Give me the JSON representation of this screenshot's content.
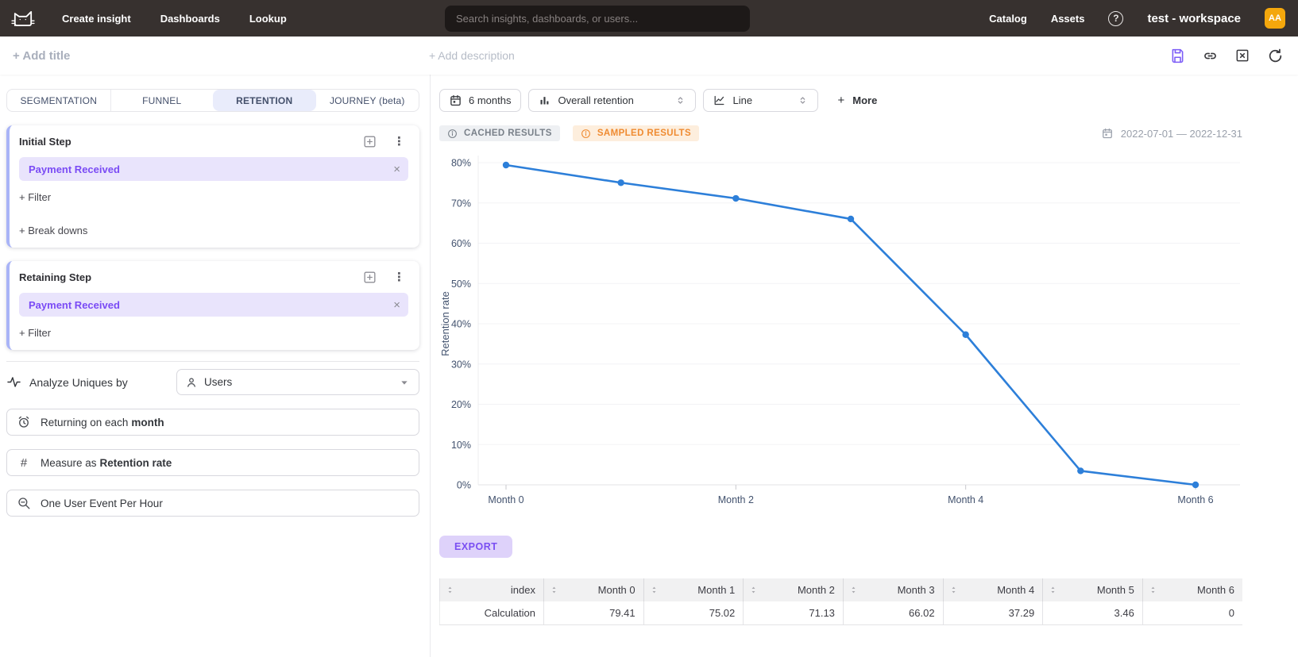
{
  "icons": {
    "help_glyph": "?",
    "hash_glyph": "#",
    "close_glyph": "×",
    "kebab_glyph": "⋮"
  },
  "colors": {
    "nav_bg": "#37312f",
    "accent_purple": "#7a4bf5",
    "chip_bg": "#e9e4fc",
    "line_blue": "#2d7fd9",
    "sampled_orange": "#ef8b31",
    "cached_gray": "#798089",
    "avatar_orange": "#f4a70c",
    "tab_active_bg": "#e9ecfb"
  },
  "nav": {
    "links": [
      {
        "label": "Create insight"
      },
      {
        "label": "Dashboards"
      },
      {
        "label": "Lookup"
      }
    ],
    "search_placeholder": "Search insights, dashboards, or users...",
    "right_links": [
      {
        "label": "Catalog"
      },
      {
        "label": "Assets"
      }
    ],
    "workspace": "test - workspace",
    "avatar_initials": "AA"
  },
  "title_bar": {
    "add_title": "+ Add title",
    "add_description": "+ Add description"
  },
  "sidebar": {
    "tabs": [
      {
        "label": "SEGMENTATION"
      },
      {
        "label": "FUNNEL"
      },
      {
        "label": "RETENTION"
      },
      {
        "label": "JOURNEY (beta)"
      }
    ],
    "active_tab": "RETENTION",
    "initial_step": {
      "title": "Initial Step",
      "event": "Payment Received",
      "filter": "+ Filter",
      "breakdowns": "+ Break downs"
    },
    "retaining_step": {
      "title": "Retaining Step",
      "event": "Payment Received",
      "filter": "+ Filter"
    },
    "analyze": {
      "label": "Analyze Uniques by",
      "value": "Users"
    },
    "returning": {
      "prefix": "Returning on each",
      "bold": "month"
    },
    "measure": {
      "prefix": "Measure as",
      "bold": "Retention rate"
    },
    "dedupe": {
      "label": "One User Event Per Hour"
    }
  },
  "toolbar": {
    "date_button": "6 months",
    "metric_select": "Overall retention",
    "chart_type_select": "Line",
    "more_plus": "+",
    "more_label": "More"
  },
  "results": {
    "cached_badge": "CACHED RESULTS",
    "sampled_badge": "SAMPLED RESULTS",
    "date_range": "2022-07-01 — 2022-12-31",
    "export_label": "EXPORT"
  },
  "chart_data": {
    "type": "line",
    "title": "",
    "x": [
      "Month 0",
      "Month 1",
      "Month 2",
      "Month 3",
      "Month 4",
      "Month 5",
      "Month 6"
    ],
    "values": [
      79.41,
      75.02,
      71.13,
      66.02,
      37.29,
      3.46,
      0
    ],
    "ylabel": "Retention rate",
    "xlabel": "",
    "ylim": [
      0,
      80
    ],
    "yticks": [
      "0%",
      "10%",
      "20%",
      "30%",
      "40%",
      "50%",
      "60%",
      "70%",
      "80%"
    ],
    "x_labeled_every": 2,
    "grid": true,
    "legend": "none",
    "line_color": "#2d7fd9",
    "marker": "circle"
  },
  "table": {
    "headers": [
      "index",
      "Month 0",
      "Month 1",
      "Month 2",
      "Month 3",
      "Month 4",
      "Month 5",
      "Month 6"
    ],
    "rows": [
      {
        "cells": [
          "Calculation",
          "79.41",
          "75.02",
          "71.13",
          "66.02",
          "37.29",
          "3.46",
          "0"
        ]
      }
    ]
  }
}
